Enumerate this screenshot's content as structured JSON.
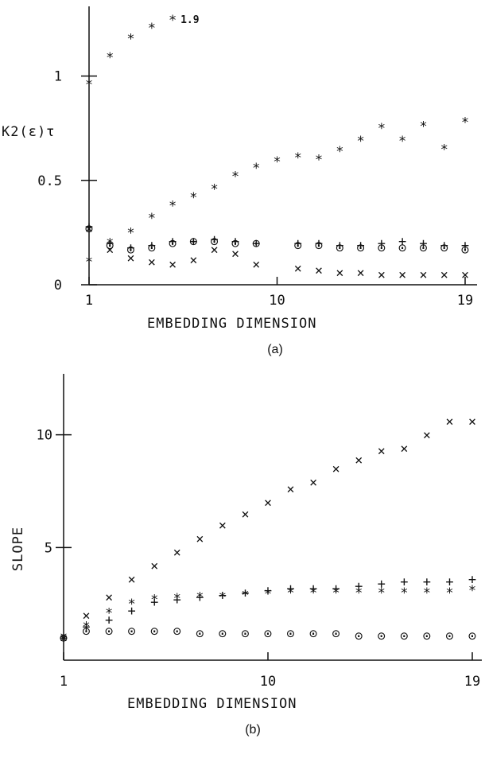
{
  "chart_data": [
    {
      "type": "scatter",
      "panel": "(a)",
      "caption": "(a)",
      "xlabel": "EMBEDDING DIMENSION",
      "ylabel": "K2(ε)τ",
      "xlim": [
        1,
        19
      ],
      "ylim": [
        0,
        1.25
      ],
      "x_ticks": [
        1,
        10,
        19
      ],
      "x_tick_labels": [
        "1",
        "10",
        "19"
      ],
      "y_ticks": [
        0,
        0.5,
        1
      ],
      "y_tick_labels": [
        "0",
        "0.5",
        "1"
      ],
      "grid": false,
      "annotation": {
        "text": "1.9",
        "x": 5,
        "y": 1.27
      },
      "series": [
        {
          "marker": "*",
          "x": [
            1,
            2,
            3,
            4,
            5
          ],
          "y": [
            0.96,
            1.09,
            1.18,
            1.23,
            1.27
          ]
        },
        {
          "marker": "*",
          "x": [
            1,
            2,
            3,
            4,
            5,
            6,
            7,
            8,
            9,
            10,
            11,
            12,
            13,
            14,
            15,
            16,
            17,
            18,
            19
          ],
          "y": [
            0.11,
            0.2,
            0.25,
            0.32,
            0.38,
            0.42,
            0.46,
            0.52,
            0.56,
            0.59,
            0.61,
            0.6,
            0.64,
            0.69,
            0.75,
            0.69,
            0.76,
            0.65,
            0.78
          ]
        },
        {
          "marker": "o",
          "x": [
            1,
            2,
            3,
            4,
            5,
            6,
            7,
            8,
            9,
            11,
            12,
            13,
            14,
            15,
            16,
            17,
            18,
            19
          ],
          "y": [
            0.27,
            0.19,
            0.17,
            0.18,
            0.2,
            0.21,
            0.21,
            0.2,
            0.2,
            0.19,
            0.19,
            0.18,
            0.18,
            0.18,
            0.18,
            0.18,
            0.18,
            0.17
          ]
        },
        {
          "marker": "+",
          "x": [
            1,
            2,
            3,
            4,
            5,
            6,
            7,
            8,
            9,
            11,
            12,
            13,
            14,
            15,
            16,
            17,
            18,
            19
          ],
          "y": [
            0.28,
            0.2,
            0.18,
            0.19,
            0.21,
            0.21,
            0.22,
            0.21,
            0.2,
            0.2,
            0.2,
            0.19,
            0.19,
            0.2,
            0.21,
            0.2,
            0.19,
            0.19
          ]
        },
        {
          "marker": "x",
          "x": [
            1,
            2,
            3,
            4,
            5,
            6,
            7,
            8,
            9,
            11,
            12,
            13,
            14,
            15,
            16,
            17,
            18,
            19
          ],
          "y": [
            0.27,
            0.17,
            0.13,
            0.11,
            0.1,
            0.12,
            0.17,
            0.15,
            0.1,
            0.08,
            0.07,
            0.06,
            0.06,
            0.05,
            0.05,
            0.05,
            0.05,
            0.05
          ]
        }
      ]
    },
    {
      "type": "scatter",
      "panel": "(b)",
      "caption": "(b)",
      "xlabel": "EMBEDDING DIMENSION",
      "ylabel": "SLOPE",
      "xlim": [
        1,
        19
      ],
      "ylim": [
        0,
        12
      ],
      "x_ticks": [
        1,
        10,
        19
      ],
      "x_tick_labels": [
        "1",
        "10",
        "19"
      ],
      "y_ticks": [
        5,
        10
      ],
      "y_tick_labels": [
        "5",
        "10"
      ],
      "grid": false,
      "series": [
        {
          "marker": "x",
          "x": [
            1,
            2,
            3,
            4,
            5,
            6,
            7,
            8,
            9,
            10,
            11,
            12,
            13,
            14,
            15,
            16,
            17,
            18,
            19
          ],
          "y": [
            1.0,
            2.0,
            2.8,
            3.6,
            4.2,
            4.8,
            5.4,
            6.0,
            6.5,
            7.0,
            7.6,
            7.9,
            8.5,
            8.9,
            9.3,
            9.4,
            10.0,
            10.6,
            10.6
          ]
        },
        {
          "marker": "+",
          "x": [
            1,
            2,
            3,
            4,
            5,
            6,
            7,
            8,
            9,
            10,
            11,
            12,
            13,
            14,
            15,
            16,
            17,
            18,
            19
          ],
          "y": [
            1.0,
            1.5,
            1.8,
            2.2,
            2.6,
            2.7,
            2.8,
            2.9,
            3.0,
            3.1,
            3.2,
            3.2,
            3.2,
            3.3,
            3.4,
            3.5,
            3.5,
            3.5,
            3.6
          ]
        },
        {
          "marker": "*",
          "x": [
            1,
            2,
            3,
            4,
            5,
            6,
            7,
            8,
            9,
            10,
            11,
            12,
            13,
            14,
            15,
            16,
            17,
            18,
            19
          ],
          "y": [
            1.0,
            1.5,
            2.1,
            2.5,
            2.7,
            2.75,
            2.8,
            2.8,
            2.9,
            2.95,
            3.0,
            3.0,
            3.0,
            3.0,
            3.0,
            3.0,
            3.0,
            3.0,
            3.1
          ]
        },
        {
          "marker": "o",
          "x": [
            1,
            2,
            3,
            4,
            5,
            6,
            7,
            8,
            9,
            10,
            11,
            12,
            13,
            14,
            15,
            16,
            17,
            18,
            19
          ],
          "y": [
            1.0,
            1.3,
            1.3,
            1.3,
            1.3,
            1.3,
            1.2,
            1.2,
            1.2,
            1.2,
            1.2,
            1.2,
            1.2,
            1.1,
            1.1,
            1.1,
            1.1,
            1.1,
            1.1
          ]
        }
      ]
    }
  ]
}
